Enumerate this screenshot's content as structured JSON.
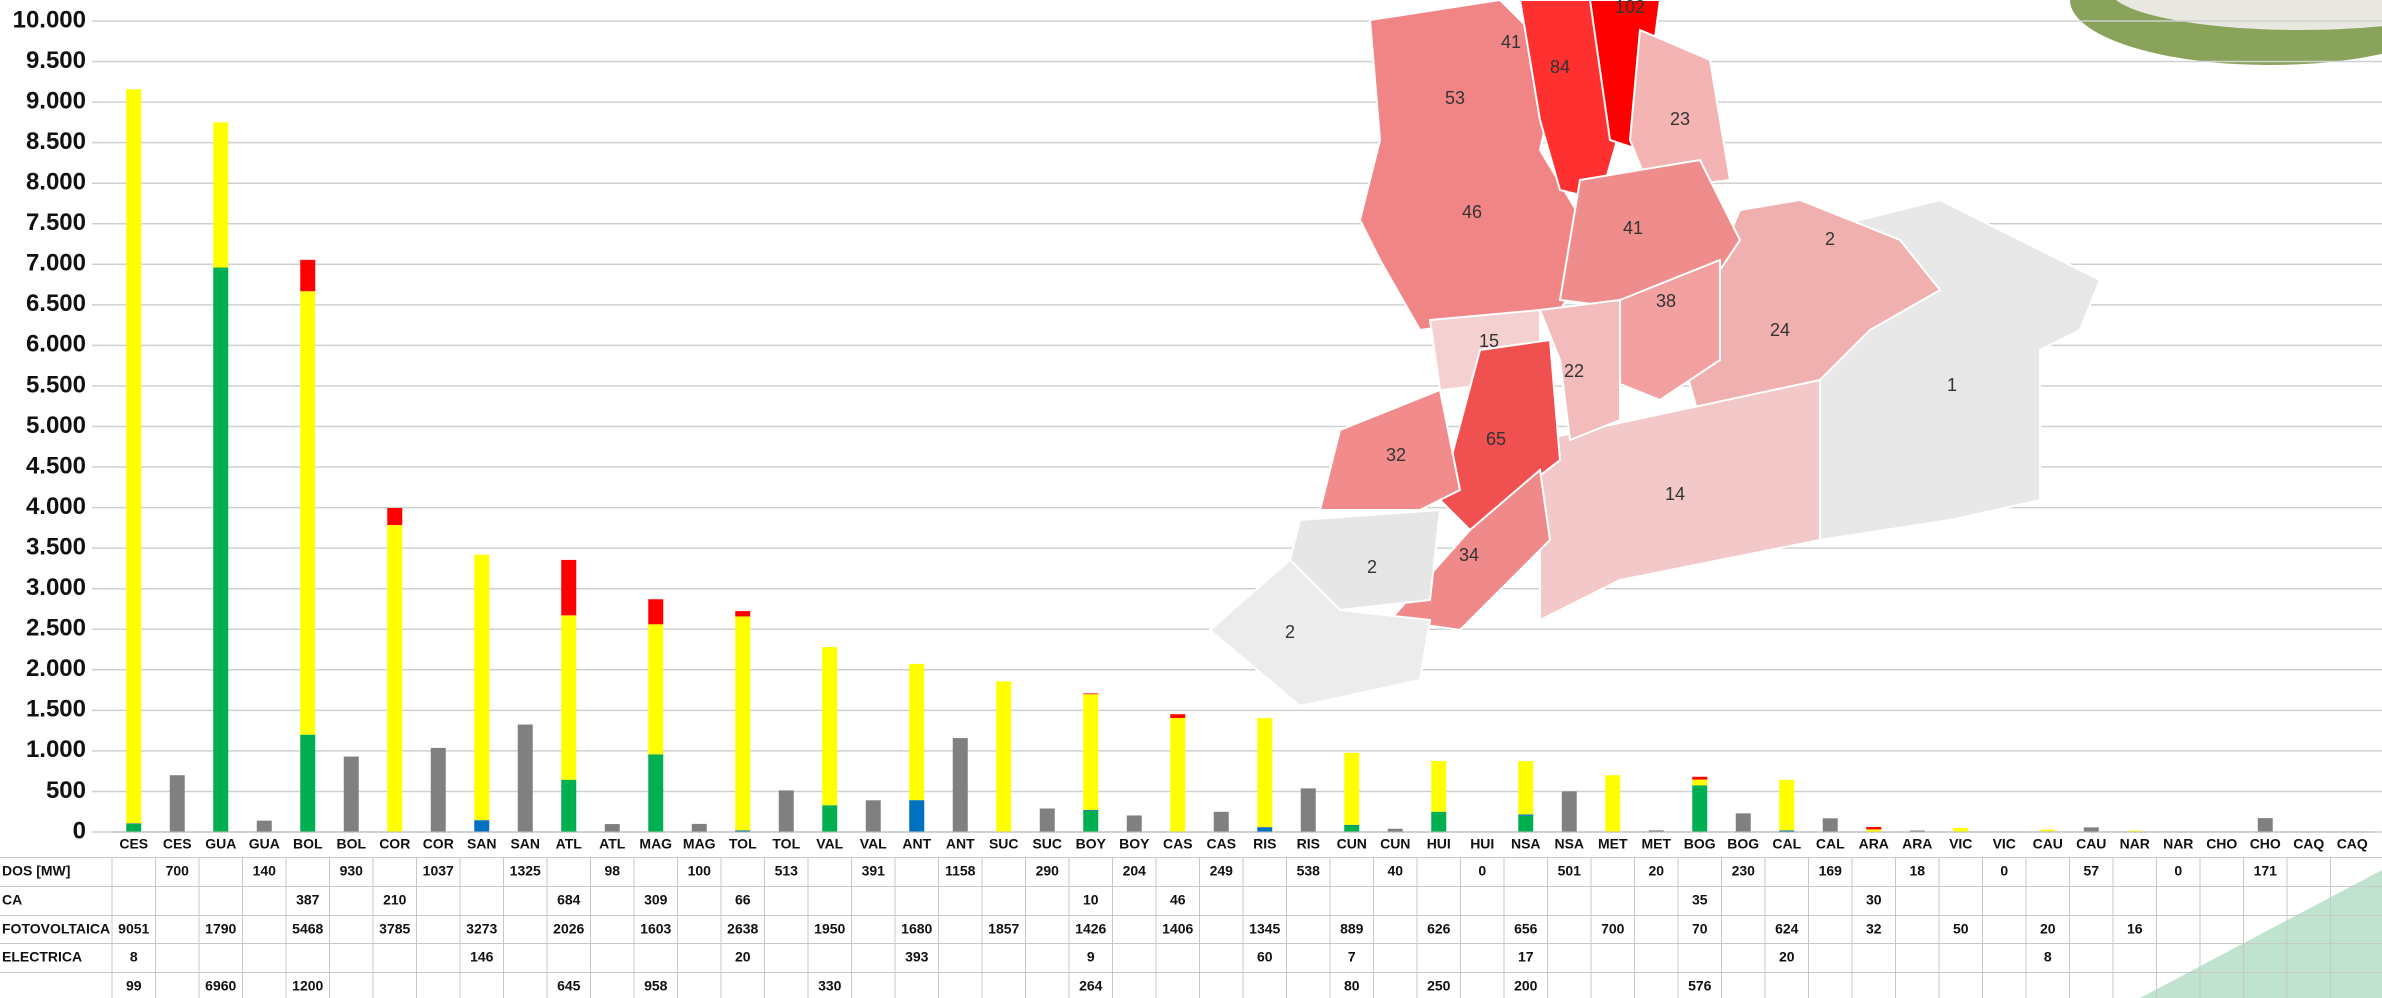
{
  "chart_data": {
    "type": "stacked_bar",
    "categories": [
      "CES",
      "CES",
      "GUA",
      "GUA",
      "BOL",
      "BOL",
      "COR",
      "COR",
      "SAN",
      "SAN",
      "ATL",
      "ATL",
      "MAG",
      "MAG",
      "TOL",
      "TOL",
      "VAL",
      "VAL",
      "ANT",
      "ANT",
      "SUC",
      "SUC",
      "BOY",
      "BOY",
      "CAS",
      "CAS",
      "RIS",
      "RIS",
      "CUN",
      "CUN",
      "HUI",
      "HUI",
      "NSA",
      "NSA",
      "MET",
      "MET",
      "BOG",
      "BOG",
      "CAL",
      "CAL",
      "ARA",
      "ARA",
      "VIC",
      "VIC",
      "CAU",
      "CAU",
      "NAR",
      "NAR",
      "CHO",
      "CHO",
      "CAQ",
      "CAQ"
    ],
    "series": [
      {
        "name": "DOS [MW]",
        "color": "#808080",
        "values": [
          null,
          700,
          null,
          140,
          null,
          930,
          null,
          1037,
          null,
          1325,
          null,
          98,
          null,
          100,
          null,
          513,
          null,
          391,
          null,
          1158,
          null,
          290,
          null,
          204,
          null,
          249,
          null,
          538,
          null,
          40,
          null,
          0,
          null,
          501,
          null,
          20,
          null,
          230,
          null,
          169,
          null,
          18,
          null,
          0,
          null,
          57,
          null,
          0,
          null,
          171,
          null,
          null
        ]
      },
      {
        "name": "CA",
        "color": "#ff0000",
        "values": [
          null,
          null,
          null,
          null,
          387,
          null,
          210,
          null,
          null,
          null,
          684,
          null,
          309,
          null,
          66,
          null,
          null,
          null,
          null,
          null,
          null,
          null,
          10,
          null,
          46,
          null,
          null,
          null,
          null,
          null,
          null,
          null,
          null,
          null,
          null,
          null,
          35,
          null,
          null,
          null,
          30,
          null,
          null,
          null,
          null,
          null,
          null,
          null,
          null,
          null,
          null,
          null
        ]
      },
      {
        "name": "FOTOVOLTAICA",
        "color": "#ffff00",
        "values": [
          9051,
          null,
          1790,
          null,
          5468,
          null,
          3785,
          null,
          3273,
          null,
          2026,
          null,
          1603,
          null,
          2638,
          null,
          1950,
          null,
          1680,
          null,
          1857,
          null,
          1426,
          null,
          1406,
          null,
          1345,
          null,
          889,
          null,
          626,
          null,
          656,
          null,
          700,
          null,
          70,
          null,
          624,
          null,
          32,
          null,
          50,
          null,
          20,
          null,
          16,
          null,
          null,
          null,
          null,
          null
        ]
      },
      {
        "name": "ELECTRICA",
        "color": "#0070c0",
        "values": [
          8,
          null,
          null,
          null,
          null,
          null,
          null,
          null,
          146,
          null,
          null,
          null,
          null,
          null,
          20,
          null,
          null,
          null,
          393,
          null,
          null,
          null,
          9,
          null,
          null,
          null,
          60,
          null,
          7,
          null,
          null,
          null,
          17,
          null,
          null,
          null,
          null,
          null,
          20,
          null,
          null,
          null,
          null,
          null,
          8,
          null,
          null,
          null,
          null,
          null,
          null,
          null
        ]
      },
      {
        "color": "#00b050",
        "values": [
          99,
          null,
          6960,
          null,
          1200,
          null,
          null,
          null,
          null,
          null,
          645,
          null,
          958,
          null,
          null,
          null,
          330,
          null,
          null,
          null,
          null,
          null,
          264,
          null,
          null,
          null,
          null,
          null,
          80,
          null,
          250,
          null,
          200,
          null,
          null,
          null,
          576,
          null,
          null,
          null,
          null,
          null,
          null,
          null,
          null,
          null,
          null,
          null,
          null,
          null,
          null,
          null
        ]
      }
    ],
    "ylim": [
      0,
      10000
    ],
    "yticks": [
      0,
      500,
      {
        "value": 1000,
        "label": "1.000"
      },
      {
        "value": 1500,
        "label": "1.500"
      },
      {
        "value": 2000,
        "label": "2.000"
      },
      {
        "value": 2500,
        "label": "2.500"
      },
      {
        "value": 3000,
        "label": "3.000"
      },
      {
        "value": 3500,
        "label": "3.500"
      },
      {
        "value": 4000,
        "label": "4.000"
      },
      {
        "value": 4500,
        "label": "4.500"
      },
      {
        "value": 5000,
        "label": "5.000"
      },
      {
        "value": 5500,
        "label": "5.500"
      },
      {
        "value": 6000,
        "label": "6.000"
      },
      {
        "value": 6500,
        "label": "6.500"
      },
      {
        "value": 7000,
        "label": "7.000"
      },
      {
        "value": 7500,
        "label": "7.500"
      },
      {
        "value": 8000,
        "label": "8.000"
      },
      {
        "value": 8500,
        "label": "8.500"
      },
      {
        "value": 9000,
        "label": "9.000"
      },
      {
        "value": 9500,
        "label": "9.500"
      },
      {
        "value": 10000,
        "label": "10.000"
      }
    ],
    "grid": true
  },
  "map": {
    "labels": [
      "102",
      "41",
      "84",
      "53",
      "23",
      "46",
      "41",
      "2",
      "38",
      "24",
      "15",
      "22",
      "1",
      "65",
      "32",
      "14",
      "2",
      "34",
      "2"
    ]
  }
}
